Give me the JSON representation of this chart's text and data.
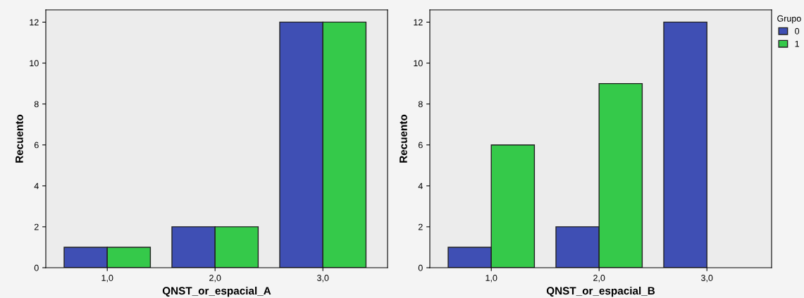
{
  "chart_data": [
    {
      "type": "bar",
      "xlabel": "QNST_or_espacial_A",
      "ylabel": "Recuento",
      "categories": [
        "1,0",
        "2,0",
        "3,0"
      ],
      "ylim": [
        0,
        12.6
      ],
      "yticks": [
        0,
        2,
        4,
        6,
        8,
        10,
        12
      ],
      "grid": false,
      "legend": false,
      "series": [
        {
          "color": "#3f4fb4",
          "values": [
            1,
            2,
            12
          ]
        },
        {
          "color": "#35c94a",
          "values": [
            1,
            2,
            12
          ]
        }
      ]
    },
    {
      "type": "bar",
      "xlabel": "QNST_or_espacial_B",
      "ylabel": "Recuento",
      "categories": [
        "1,0",
        "2,0",
        "3,0"
      ],
      "ylim": [
        0,
        12.6
      ],
      "yticks": [
        0,
        2,
        4,
        6,
        8,
        10,
        12
      ],
      "grid": false,
      "legend": "top right",
      "legend_title": "Grupo",
      "series": [
        {
          "name": "0",
          "color": "#3f4fb4",
          "values": [
            1,
            2,
            12
          ]
        },
        {
          "name": "1",
          "color": "#35c94a",
          "values": [
            6,
            9,
            null
          ]
        }
      ]
    }
  ]
}
